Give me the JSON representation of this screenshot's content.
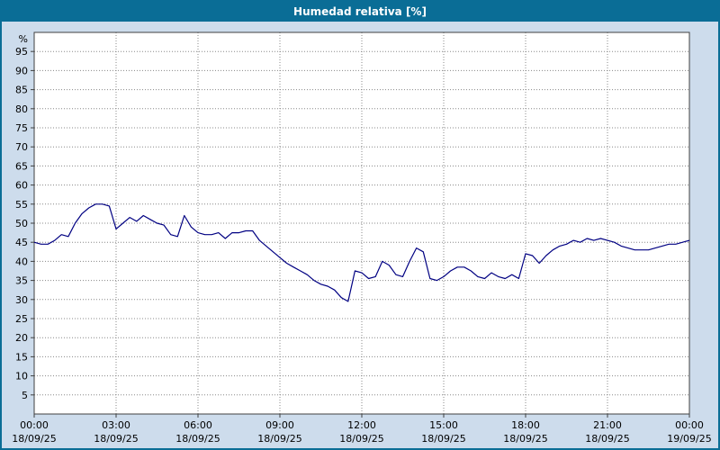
{
  "window": {
    "title": "Humedad relativa [%]"
  },
  "colors": {
    "titlebar": "#0a6d96",
    "window_border": "#0a6d96",
    "content_background": "#cddcec",
    "plot_background": "#ffffff",
    "plot_border": "#404040",
    "grid": "#888888",
    "line": "#000082",
    "text": "#000000"
  },
  "chart_data": {
    "type": "line",
    "title": "Humedad relativa [%]",
    "ylabel": "%",
    "xlabel": "",
    "ylim": [
      0,
      100
    ],
    "ytick_min": 5,
    "ytick_max": 95,
    "ytick_step": 5,
    "xlim": [
      0,
      24
    ],
    "grid": "dotted",
    "legend": "none",
    "xticks": [
      {
        "pos": 0,
        "label": "00:00",
        "date": "18/09/25"
      },
      {
        "pos": 3,
        "label": "03:00",
        "date": "18/09/25"
      },
      {
        "pos": 6,
        "label": "06:00",
        "date": "18/09/25"
      },
      {
        "pos": 9,
        "label": "09:00",
        "date": "18/09/25"
      },
      {
        "pos": 12,
        "label": "12:00",
        "date": "18/09/25"
      },
      {
        "pos": 15,
        "label": "15:00",
        "date": "18/09/25"
      },
      {
        "pos": 18,
        "label": "18:00",
        "date": "18/09/25"
      },
      {
        "pos": 21,
        "label": "21:00",
        "date": "18/09/25"
      },
      {
        "pos": 24,
        "label": "00:00",
        "date": "19/09/25"
      }
    ],
    "series": [
      {
        "name": "Humedad relativa",
        "color": "#000082",
        "x": [
          0.0,
          0.25,
          0.5,
          0.75,
          1.0,
          1.25,
          1.5,
          1.75,
          2.0,
          2.25,
          2.5,
          2.75,
          3.0,
          3.25,
          3.5,
          3.75,
          4.0,
          4.25,
          4.5,
          4.75,
          5.0,
          5.25,
          5.5,
          5.75,
          6.0,
          6.25,
          6.5,
          6.75,
          7.0,
          7.25,
          7.5,
          7.75,
          8.0,
          8.25,
          8.5,
          8.75,
          9.0,
          9.25,
          9.5,
          9.75,
          10.0,
          10.25,
          10.5,
          10.75,
          11.0,
          11.25,
          11.5,
          11.75,
          12.0,
          12.25,
          12.5,
          12.75,
          13.0,
          13.25,
          13.5,
          13.75,
          14.0,
          14.25,
          14.5,
          14.75,
          15.0,
          15.25,
          15.5,
          15.75,
          16.0,
          16.25,
          16.5,
          16.75,
          17.0,
          17.25,
          17.5,
          17.75,
          18.0,
          18.25,
          18.5,
          18.75,
          19.0,
          19.25,
          19.5,
          19.75,
          20.0,
          20.25,
          20.5,
          20.75,
          21.0,
          21.25,
          21.5,
          21.75,
          22.0,
          22.25,
          22.5,
          22.75,
          23.0,
          23.25,
          23.5,
          23.75,
          24.0
        ],
        "y": [
          45,
          44.5,
          44.5,
          45.5,
          47,
          46.5,
          50,
          52.5,
          54,
          55,
          55,
          54.5,
          48.5,
          50,
          51.5,
          50.5,
          52,
          51,
          50,
          49.5,
          47,
          46.5,
          52,
          49,
          47.5,
          47,
          47,
          47.5,
          46,
          47.5,
          47.5,
          48,
          48,
          45.5,
          44,
          42.5,
          41,
          39.5,
          38.5,
          37.5,
          36.5,
          35,
          34,
          33.5,
          32.5,
          30.5,
          29.5,
          37.5,
          37,
          35.5,
          36,
          40,
          39,
          36.5,
          36,
          40,
          43.5,
          42.5,
          35.5,
          35,
          36,
          37.5,
          38.5,
          38.5,
          37.5,
          36,
          35.5,
          37,
          36,
          35.5,
          36.5,
          35.5,
          42,
          41.5,
          39.5,
          41.5,
          43,
          44,
          44.5,
          45.5,
          45,
          46,
          45.5,
          46,
          45.5,
          45,
          44,
          43.5,
          43,
          43,
          43,
          43.5,
          44,
          44.5,
          44.5,
          45,
          45.5
        ]
      }
    ]
  }
}
